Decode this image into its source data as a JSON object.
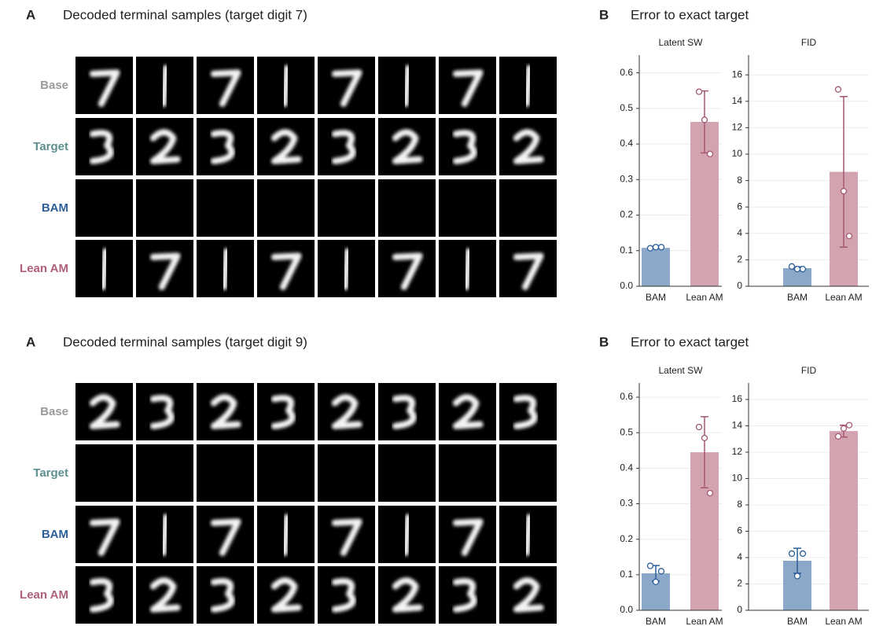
{
  "figures": [
    {
      "panel_a": {
        "letter": "A",
        "title": "Decoded terminal samples (target digit 7)",
        "row_labels": [
          "Base",
          "Target",
          "BAM",
          "Lean AM"
        ]
      },
      "panel_b": {
        "letter": "B",
        "title": "Error to exact target"
      }
    },
    {
      "panel_a": {
        "letter": "A",
        "title": "Decoded terminal samples (target digit 9)",
        "row_labels": [
          "Base",
          "Target",
          "BAM",
          "Lean AM"
        ]
      },
      "panel_b": {
        "letter": "B",
        "title": "Error to exact target"
      }
    }
  ],
  "chart_data": [
    {
      "type": "bar",
      "title": "Latent SW",
      "categories": [
        "BAM",
        "Lean AM"
      ],
      "values": [
        0.108,
        0.462
      ],
      "errors": [
        0.002,
        0.087
      ],
      "points": [
        [
          0.107,
          0.11,
          0.11
        ],
        [
          0.547,
          0.468,
          0.372
        ]
      ],
      "colors": [
        "#8ba8c9",
        "#d4a3b0"
      ],
      "error_colors": [
        "#2d5f99",
        "#a45872"
      ],
      "ylim": [
        0,
        0.65
      ],
      "yticks": [
        {
          "value": 0,
          "label": "0.0"
        },
        0.1,
        0.2,
        0.3,
        0.4,
        0.5,
        0.6
      ],
      "grid": true
    },
    {
      "type": "bar",
      "title": "FID",
      "categories": [
        "BAM",
        "Lean AM"
      ],
      "values": [
        1.37,
        8.66
      ],
      "errors": [
        0.1,
        5.7
      ],
      "points": [
        [
          1.5,
          1.3,
          1.3
        ],
        [
          14.9,
          7.2,
          3.8
        ]
      ],
      "colors": [
        "#8ba8c9",
        "#d4a3b0"
      ],
      "error_colors": [
        "#2d5f99",
        "#a45872"
      ],
      "ylim": [
        0,
        17.5
      ],
      "yticks": [
        0,
        2,
        4,
        6,
        8,
        10,
        12,
        14,
        16
      ],
      "grid": true
    },
    {
      "type": "bar",
      "title": "Latent SW",
      "categories": [
        "BAM",
        "Lean AM"
      ],
      "values": [
        0.104,
        0.445
      ],
      "errors": [
        0.022,
        0.1
      ],
      "points": [
        [
          0.125,
          0.08,
          0.11
        ],
        [
          0.516,
          0.485,
          0.33
        ]
      ],
      "colors": [
        "#8ba8c9",
        "#d4a3b0"
      ],
      "error_colors": [
        "#2d5f99",
        "#a45872"
      ],
      "ylim": [
        0,
        0.64
      ],
      "yticks": [
        {
          "value": 0,
          "label": "0.0"
        },
        0.1,
        0.2,
        0.3,
        0.4,
        0.5,
        0.6
      ],
      "grid": true
    },
    {
      "type": "bar",
      "title": "FID",
      "categories": [
        "BAM",
        "Lean AM"
      ],
      "values": [
        3.76,
        13.6
      ],
      "errors": [
        0.95,
        0.45
      ],
      "points": [
        [
          4.3,
          2.6,
          4.3
        ],
        [
          13.2,
          13.8,
          14.05
        ]
      ],
      "colors": [
        "#8ba8c9",
        "#d4a3b0"
      ],
      "error_colors": [
        "#2d5f99",
        "#a45872"
      ],
      "ylim": [
        0,
        17.25
      ],
      "yticks": [
        0,
        2,
        4,
        6,
        8,
        10,
        12,
        14,
        16
      ],
      "grid": true
    }
  ]
}
